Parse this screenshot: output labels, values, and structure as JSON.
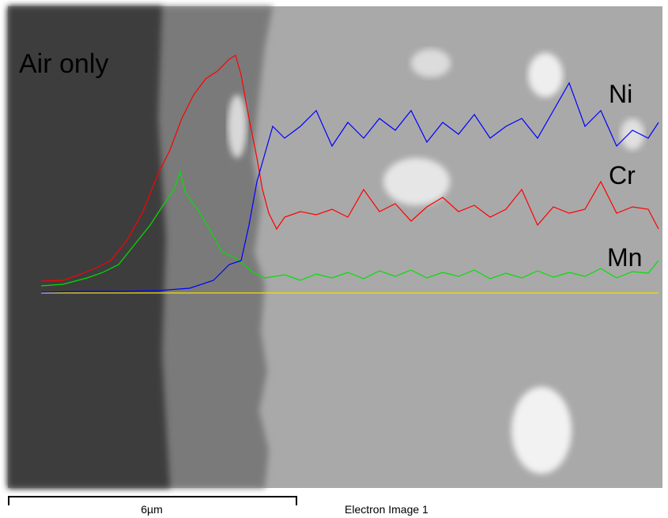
{
  "image": {
    "label": "Air only",
    "elements": [
      "Ni",
      "Cr",
      "Mn"
    ]
  },
  "footer": {
    "scale": "6µm",
    "caption": "Electron Image 1"
  }
}
